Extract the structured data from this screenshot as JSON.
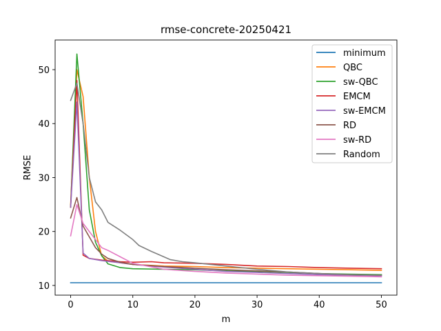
{
  "chart_data": {
    "type": "line",
    "title": "rmse-concrete-20250421",
    "xlabel": "m",
    "ylabel": "RMSE",
    "xlim": [
      -2.5,
      52.5
    ],
    "ylim": [
      8.2,
      55.5
    ],
    "xticks": [
      0,
      10,
      20,
      30,
      40,
      50
    ],
    "yticks": [
      10,
      20,
      30,
      40,
      50
    ],
    "grid": false,
    "legend_position": "top-right",
    "series": [
      {
        "name": "minimum",
        "color": "#1f77b4",
        "x": [
          0,
          50
        ],
        "y": [
          10.5,
          10.5
        ]
      },
      {
        "name": "QBC",
        "color": "#ff7f0e",
        "x": [
          0,
          1,
          2,
          3,
          4,
          5,
          6,
          8,
          10,
          15,
          20,
          25,
          30,
          35,
          40,
          45,
          50
        ],
        "y": [
          25,
          50,
          45,
          30,
          20,
          15.5,
          14.5,
          14.2,
          13.9,
          13.6,
          13.5,
          13.3,
          13.2,
          13.1,
          13.0,
          12.9,
          12.8
        ]
      },
      {
        "name": "sw-QBC",
        "color": "#2ca02c",
        "x": [
          0,
          1,
          2,
          3,
          4,
          5,
          6,
          8,
          10,
          15,
          20,
          25,
          30,
          35,
          40,
          45,
          50
        ],
        "y": [
          24.5,
          52.9,
          40,
          24,
          18,
          15.5,
          14,
          13.3,
          13.1,
          13.0,
          12.9,
          12.7,
          12.6,
          12.4,
          12.2,
          12.1,
          12.0
        ]
      },
      {
        "name": "EMCM",
        "color": "#d62728",
        "x": [
          0,
          1,
          2,
          3,
          5,
          8,
          10,
          13,
          15,
          20,
          25,
          30,
          35,
          40,
          45,
          50
        ],
        "y": [
          24.5,
          48,
          15.6,
          15.0,
          14.7,
          14.4,
          14.3,
          14.4,
          14.2,
          14.1,
          13.9,
          13.6,
          13.5,
          13.3,
          13.2,
          13.1
        ]
      },
      {
        "name": "sw-EMCM",
        "color": "#9467bd",
        "x": [
          0,
          1,
          2,
          3,
          5,
          8,
          10,
          15,
          20,
          25,
          30,
          35,
          40,
          45,
          50
        ],
        "y": [
          24.5,
          44,
          16,
          15,
          14.6,
          14.2,
          13.9,
          13.4,
          13.0,
          12.6,
          12.4,
          12.2,
          12.0,
          11.9,
          11.8
        ]
      },
      {
        "name": "RD",
        "color": "#8c564b",
        "x": [
          0,
          1,
          2,
          3,
          4,
          5,
          6,
          8,
          10,
          15,
          20,
          25,
          30,
          35,
          40,
          45,
          50
        ],
        "y": [
          22.5,
          26.3,
          21,
          19,
          17,
          15.8,
          15,
          14.3,
          13.9,
          13.5,
          13.2,
          12.9,
          12.7,
          12.5,
          12.2,
          12.0,
          11.9
        ]
      },
      {
        "name": "sw-RD",
        "color": "#e377c2",
        "x": [
          0,
          1,
          2,
          3,
          4,
          5,
          6,
          8,
          10,
          15,
          20,
          25,
          30,
          35,
          40,
          45,
          50
        ],
        "y": [
          19.2,
          25,
          21.5,
          20,
          18.5,
          17,
          16.5,
          15.3,
          14.1,
          13.0,
          12.6,
          12.3,
          12.1,
          11.9,
          11.8,
          11.7,
          11.6
        ]
      },
      {
        "name": "Random",
        "color": "#7f7f7f",
        "x": [
          0,
          1,
          2,
          3,
          4,
          5,
          6,
          8,
          10,
          11,
          13,
          14,
          16,
          18,
          20,
          25,
          30,
          35,
          40,
          45,
          50
        ],
        "y": [
          44.3,
          47.5,
          40,
          30,
          25.5,
          24,
          21.7,
          20.2,
          18.5,
          17.4,
          16.3,
          15.8,
          14.8,
          14.4,
          14.2,
          13.6,
          13.0,
          12.5,
          12.2,
          12.0,
          11.9
        ]
      }
    ]
  }
}
